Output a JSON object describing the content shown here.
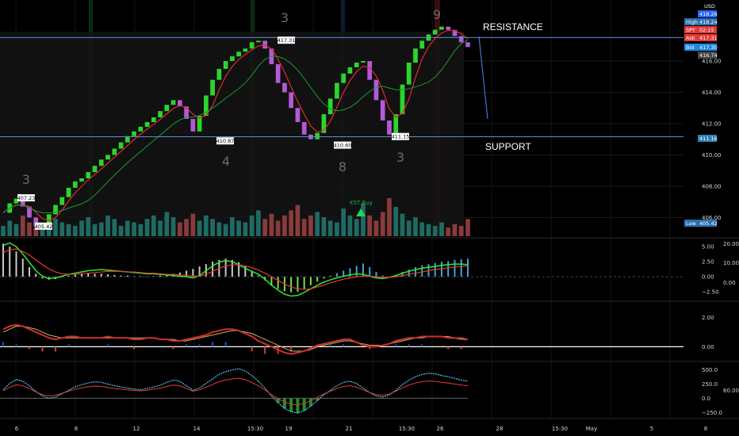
{
  "chart_data": {
    "type": "line",
    "symbol": "SPY",
    "price_range": [
      404.8,
      419.6
    ],
    "price_ticks": [
      "406.00",
      "408.00",
      "410.00",
      "412.00",
      "414.00",
      "416.00"
    ],
    "price_tick_values": [
      406,
      408,
      410,
      412,
      414,
      416
    ],
    "price_series": [
      406.3,
      406.9,
      407.2,
      406.7,
      406.0,
      405.4,
      405.6,
      406.2,
      406.8,
      407.3,
      407.9,
      408.3,
      408.5,
      408.9,
      409.3,
      409.7,
      410.0,
      410.4,
      410.8,
      411.2,
      411.5,
      411.8,
      412.1,
      412.4,
      412.8,
      413.2,
      413.5,
      413.1,
      412.3,
      411.5,
      412.5,
      413.8,
      414.8,
      415.5,
      416.0,
      416.3,
      416.6,
      416.8,
      417.2,
      417.3,
      416.8,
      415.8,
      414.6,
      414.0,
      413.0,
      412.1,
      411.3,
      411.0,
      411.4,
      412.6,
      413.6,
      414.6,
      415.2,
      415.6,
      415.9,
      416.0,
      414.8,
      413.5,
      412.2,
      411.3,
      412.6,
      414.5,
      415.9,
      416.8,
      417.3,
      417.7,
      418.0,
      418.2,
      418.0,
      417.6,
      417.2,
      416.9
    ],
    "x_labels": [
      "6",
      "8",
      "12",
      "14",
      "15:30",
      "19",
      "21",
      "15:30",
      "26",
      "28",
      "15:30",
      "May",
      "5",
      "8"
    ],
    "price_labels": [
      {
        "text": "407.23",
        "value": 407.23
      },
      {
        "text": "405.42",
        "value": 405.42
      },
      {
        "text": "410.87",
        "value": 410.87
      },
      {
        "text": "417.31",
        "value": 417.31
      },
      {
        "text": "410.60",
        "value": 410.6
      },
      {
        "text": "411.15",
        "value": 411.15
      }
    ],
    "count_labels": [
      "3",
      "3",
      "4",
      "8",
      "3",
      "9"
    ],
    "annotations": {
      "resistance": "RESISTANCE",
      "support": "SUPPORT",
      "buy_signal": "KST Buy"
    },
    "levels": {
      "resistance": 417.5,
      "support": 411.16
    },
    "right_tags": [
      {
        "label": "USD",
        "value": "",
        "color": "#ffffff"
      },
      {
        "label": "",
        "value": "418.26",
        "color": "#2962ff"
      },
      {
        "label": "High",
        "value": "418.24",
        "color": "#2a6fb0"
      },
      {
        "label": "SPY",
        "value": "02:15",
        "color": "#e53935"
      },
      {
        "label": "Ask",
        "value": "417.31",
        "color": "#e53935"
      },
      {
        "label": "Bid",
        "value": "417.30",
        "color": "#1e88e5"
      },
      {
        "label": "",
        "value": "416.74",
        "color": "#444444"
      },
      {
        "label": "",
        "value": "411.16",
        "color": "#2f7fb8"
      },
      {
        "label": "Low",
        "value": "405.42",
        "color": "#2a6fb0"
      }
    ],
    "volume": [
      6,
      9,
      7,
      12,
      8,
      5,
      6,
      9,
      10,
      8,
      7,
      6,
      9,
      11,
      7,
      8,
      12,
      10,
      6,
      9,
      8,
      7,
      10,
      12,
      9,
      14,
      11,
      8,
      10,
      13,
      9,
      12,
      10,
      8,
      7,
      11,
      9,
      8,
      12,
      15,
      10,
      13,
      9,
      12,
      15,
      18,
      10,
      12,
      14,
      11,
      9,
      8,
      16,
      12,
      10,
      19,
      12,
      9,
      14,
      22,
      17,
      13,
      9,
      11,
      8,
      7,
      6,
      8,
      5,
      7,
      6,
      10
    ],
    "osc1": {
      "ticks": [
        "5.00",
        "2.50",
        "0.00",
        "−2.50"
      ],
      "tick_values": [
        5,
        2.5,
        0,
        -2.5
      ],
      "ticks_right": [
        "20.00",
        "10.00",
        "0.00"
      ],
      "range": [
        -3.8,
        6.2
      ],
      "fast": [
        5.2,
        5.6,
        5.0,
        3.8,
        2.4,
        1.0,
        0.1,
        -0.3,
        -0.2,
        0.1,
        0.4,
        0.6,
        0.8,
        1.0,
        1.1,
        1.2,
        1.1,
        1.0,
        0.9,
        0.8,
        0.7,
        0.6,
        0.5,
        0.5,
        0.4,
        0.3,
        0.2,
        0.1,
        0.0,
        -0.2,
        0.2,
        1.0,
        1.8,
        2.4,
        2.7,
        2.5,
        2.0,
        1.4,
        0.9,
        0.4,
        -0.4,
        -1.4,
        -2.2,
        -2.9,
        -3.2,
        -3.1,
        -2.6,
        -2.0,
        -1.4,
        -0.9,
        -0.5,
        -0.2,
        0.1,
        0.3,
        0.5,
        0.4,
        0.1,
        -0.2,
        -0.3,
        -0.1,
        0.2,
        0.6,
        0.9,
        1.2,
        1.4,
        1.6,
        1.7,
        1.9,
        2.0,
        2.1,
        2.1,
        2.0
      ],
      "slow": [
        4.0,
        4.5,
        4.6,
        4.2,
        3.6,
        2.8,
        2.0,
        1.3,
        0.8,
        0.5,
        0.4,
        0.4,
        0.5,
        0.6,
        0.7,
        0.8,
        0.9,
        0.9,
        0.9,
        0.8,
        0.8,
        0.7,
        0.6,
        0.6,
        0.5,
        0.4,
        0.4,
        0.3,
        0.2,
        0.1,
        0.1,
        0.4,
        0.9,
        1.4,
        1.8,
        2.0,
        2.0,
        1.8,
        1.5,
        1.1,
        0.6,
        0.0,
        -0.6,
        -1.2,
        -1.7,
        -2.0,
        -2.1,
        -2.0,
        -1.7,
        -1.4,
        -1.0,
        -0.7,
        -0.4,
        -0.2,
        0.0,
        0.1,
        0.1,
        0.0,
        -0.1,
        -0.1,
        0.0,
        0.2,
        0.4,
        0.6,
        0.8,
        1.0,
        1.2,
        1.3,
        1.5,
        1.6,
        1.7,
        1.8
      ],
      "hist": [
        5.5,
        5.0,
        4.2,
        3.0,
        1.6,
        0.5,
        -0.3,
        -0.5,
        -0.4,
        -0.1,
        0.2,
        0.4,
        0.5,
        0.6,
        0.5,
        0.5,
        0.4,
        0.3,
        0.2,
        0.2,
        0.1,
        0.1,
        0.0,
        0.1,
        0.2,
        0.3,
        0.5,
        0.7,
        1.0,
        1.3,
        1.7,
        2.1,
        2.5,
        2.8,
        3.0,
        2.8,
        2.4,
        1.8,
        1.0,
        0.2,
        -0.6,
        -1.4,
        -2.0,
        -2.4,
        -2.6,
        -2.5,
        -2.0,
        -1.4,
        -0.8,
        -0.3,
        0.2,
        0.6,
        1.0,
        1.4,
        1.8,
        2.2,
        1.6,
        0.8,
        0.2,
        -0.2,
        0.3,
        0.8,
        1.2,
        1.6,
        1.9,
        2.1,
        2.3,
        2.5,
        2.6,
        2.8,
        2.9,
        3.0
      ]
    },
    "osc2": {
      "ticks": [
        "2.00",
        "0.00"
      ],
      "tick_values": [
        2,
        0
      ],
      "range": [
        -0.9,
        3.0
      ],
      "fast": [
        1.2,
        1.4,
        1.5,
        1.4,
        1.2,
        1.0,
        0.8,
        0.6,
        0.5,
        0.6,
        0.7,
        0.7,
        0.6,
        0.6,
        0.6,
        0.6,
        0.7,
        0.6,
        0.6,
        0.6,
        0.5,
        0.5,
        0.6,
        0.6,
        0.5,
        0.5,
        0.4,
        0.4,
        0.5,
        0.6,
        0.7,
        0.8,
        1.0,
        1.1,
        1.2,
        1.2,
        1.1,
        0.9,
        0.7,
        0.4,
        0.2,
        0.0,
        -0.2,
        -0.4,
        -0.5,
        -0.4,
        -0.3,
        -0.1,
        0.1,
        0.2,
        0.3,
        0.4,
        0.5,
        0.5,
        0.3,
        0.1,
        0.0,
        0.0,
        0.1,
        0.2,
        0.4,
        0.5,
        0.6,
        0.6,
        0.7,
        0.7,
        0.7,
        0.7,
        0.6,
        0.6,
        0.5,
        0.5
      ],
      "slow": [
        1.0,
        1.2,
        1.4,
        1.4,
        1.3,
        1.2,
        1.0,
        0.8,
        0.7,
        0.6,
        0.6,
        0.6,
        0.6,
        0.6,
        0.6,
        0.6,
        0.6,
        0.6,
        0.6,
        0.6,
        0.6,
        0.6,
        0.6,
        0.6,
        0.5,
        0.5,
        0.5,
        0.4,
        0.4,
        0.5,
        0.6,
        0.7,
        0.8,
        0.9,
        1.0,
        1.1,
        1.1,
        1.0,
        0.9,
        0.7,
        0.5,
        0.3,
        0.1,
        -0.1,
        -0.3,
        -0.3,
        -0.3,
        -0.2,
        0.0,
        0.1,
        0.2,
        0.3,
        0.4,
        0.4,
        0.3,
        0.2,
        0.1,
        0.1,
        0.1,
        0.2,
        0.3,
        0.4,
        0.5,
        0.6,
        0.6,
        0.7,
        0.7,
        0.7,
        0.7,
        0.6,
        0.6,
        0.5
      ]
    },
    "osc3": {
      "ticks": [
        "500.0",
        "250.0",
        "0.0",
        "−250.0"
      ],
      "tick_values": [
        500,
        250,
        0,
        -250
      ],
      "ticks_right": [
        "60.00"
      ],
      "range": [
        -330,
        620
      ],
      "series": [
        150,
        260,
        330,
        300,
        220,
        120,
        40,
        0,
        20,
        80,
        140,
        200,
        240,
        270,
        290,
        280,
        250,
        220,
        200,
        180,
        160,
        150,
        170,
        200,
        230,
        280,
        320,
        300,
        220,
        140,
        180,
        260,
        340,
        420,
        470,
        500,
        520,
        480,
        400,
        300,
        180,
        40,
        -80,
        -180,
        -240,
        -260,
        -220,
        -140,
        -40,
        60,
        140,
        220,
        280,
        300,
        260,
        180,
        100,
        40,
        20,
        60,
        140,
        240,
        320,
        380,
        420,
        440,
        430,
        400,
        380,
        350,
        320,
        300
      ]
    }
  }
}
